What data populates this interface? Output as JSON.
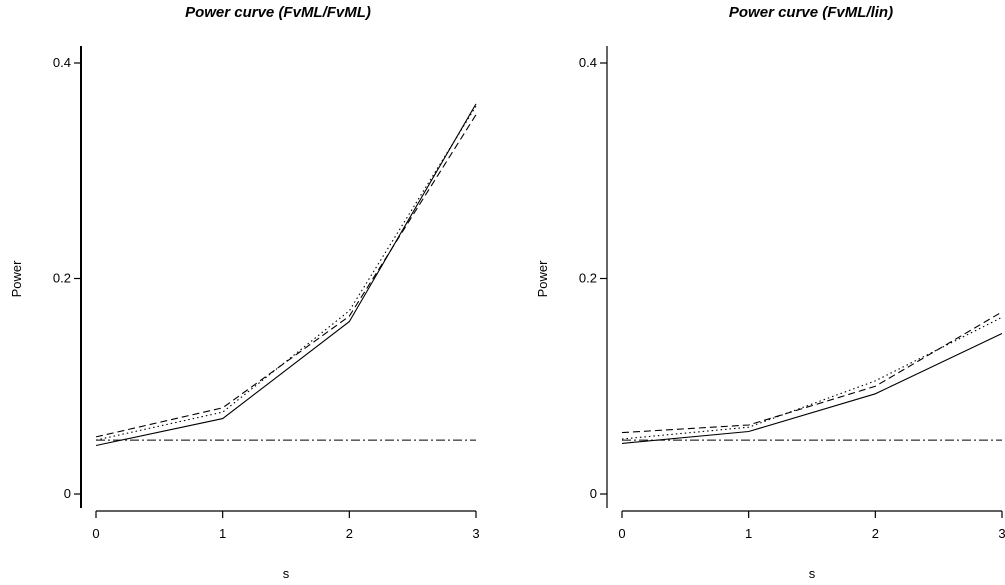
{
  "chart_data": [
    {
      "type": "line",
      "title": "Power curve (FvML/FvML)",
      "xlabel": "s",
      "ylabel": "Power",
      "x": [
        0,
        1,
        2,
        3
      ],
      "xticks": [
        0,
        1,
        2,
        3
      ],
      "yticks": [
        0.0,
        0.2,
        0.4
      ],
      "xlim": [
        0,
        3
      ],
      "ylim": [
        0,
        0.4
      ],
      "grid": false,
      "reference_line": {
        "y": 0.05,
        "dash": "dash-dot"
      },
      "series": [
        {
          "style": "solid",
          "values": [
            0.045,
            0.07,
            0.16,
            0.362
          ]
        },
        {
          "style": "dashed",
          "values": [
            0.053,
            0.08,
            0.165,
            0.352
          ]
        },
        {
          "style": "dotted",
          "values": [
            0.05,
            0.076,
            0.17,
            0.36
          ]
        }
      ]
    },
    {
      "type": "line",
      "title": "Power curve (FvML/lin)",
      "xlabel": "s",
      "ylabel": "Power",
      "x": [
        0,
        1,
        2,
        3
      ],
      "xticks": [
        0,
        1,
        2,
        3
      ],
      "yticks": [
        0.0,
        0.2,
        0.4
      ],
      "xlim": [
        0,
        3
      ],
      "ylim": [
        0,
        0.4
      ],
      "grid": false,
      "reference_line": {
        "y": 0.05,
        "dash": "dash-dot"
      },
      "series": [
        {
          "style": "solid",
          "values": [
            0.047,
            0.058,
            0.093,
            0.149
          ]
        },
        {
          "style": "dashed",
          "values": [
            0.057,
            0.064,
            0.1,
            0.169
          ]
        },
        {
          "style": "dotted",
          "values": [
            0.051,
            0.062,
            0.105,
            0.164
          ]
        }
      ]
    }
  ]
}
